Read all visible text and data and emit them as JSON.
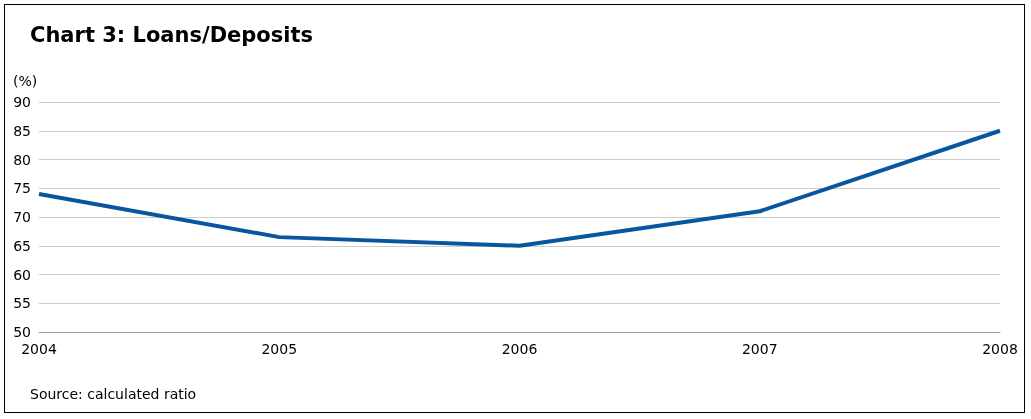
{
  "chart_data": {
    "type": "line",
    "title": "Chart 3: Loans/Deposits",
    "ylabel": "(%)",
    "categories": [
      "2004",
      "2005",
      "2006",
      "2007",
      "2008"
    ],
    "series": [
      {
        "color": "#0a55a0",
        "values": [
          74,
          66.5,
          65,
          71,
          85
        ]
      }
    ],
    "ylim": [
      50,
      90
    ],
    "yticks": [
      50,
      55,
      60,
      65,
      70,
      75,
      80,
      85,
      90
    ],
    "grid": "y",
    "marker": "none",
    "line_style": "solid",
    "annotations": [
      "Source: calculated ratio"
    ]
  }
}
